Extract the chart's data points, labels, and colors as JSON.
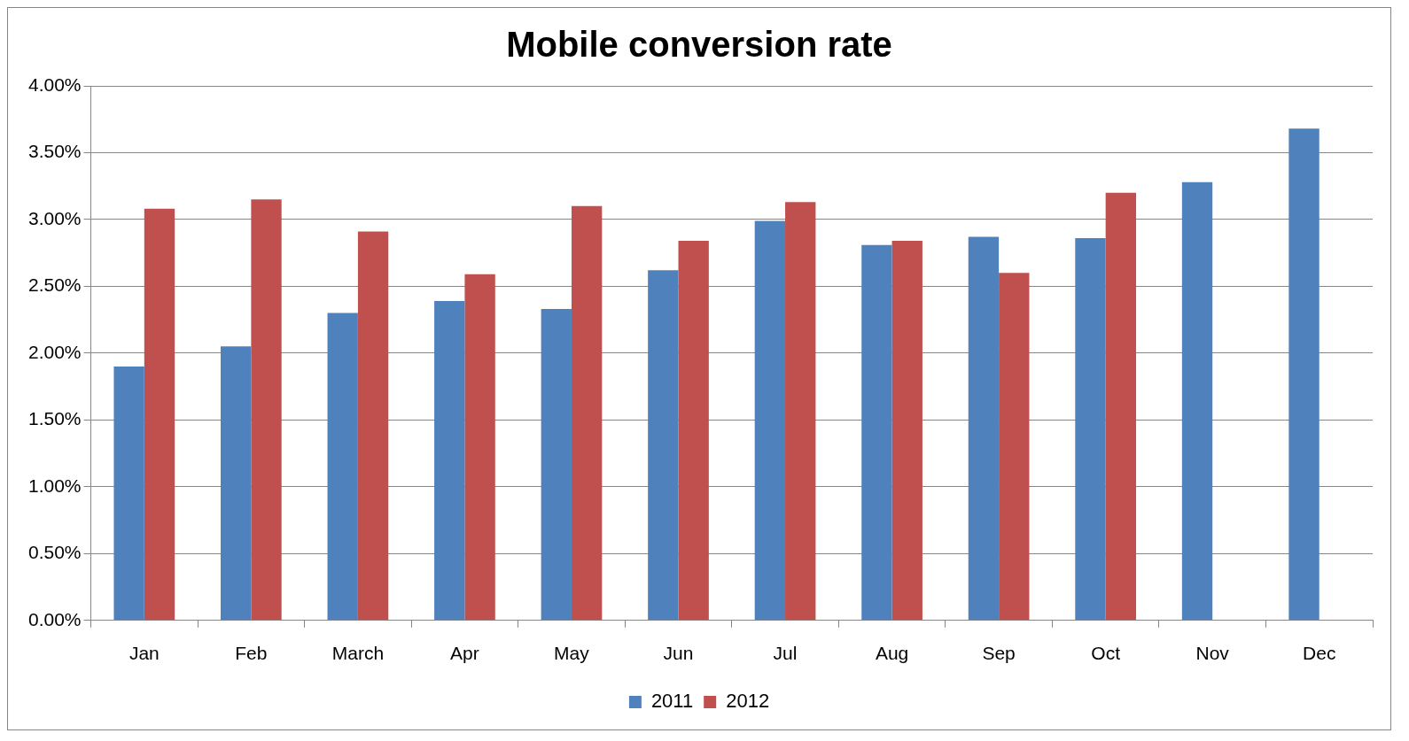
{
  "chart_data": {
    "type": "bar",
    "title": "Mobile conversion rate",
    "categories": [
      "Jan",
      "Feb",
      "March",
      "Apr",
      "May",
      "Jun",
      "Jul",
      "Aug",
      "Sep",
      "Oct",
      "Nov",
      "Dec"
    ],
    "series": [
      {
        "name": "2011",
        "color": "#4f81bd",
        "values": [
          1.9,
          2.05,
          2.3,
          2.39,
          2.33,
          2.62,
          2.99,
          2.81,
          2.87,
          2.86,
          3.28,
          3.68
        ]
      },
      {
        "name": "2012",
        "color": "#c0504d",
        "values": [
          3.08,
          3.15,
          2.91,
          2.59,
          3.1,
          2.84,
          3.13,
          2.84,
          2.6,
          3.2,
          null,
          null
        ]
      }
    ],
    "ylim": [
      0,
      4
    ],
    "yticks": [
      {
        "value": 0,
        "label": "0.00%"
      },
      {
        "value": 0.5,
        "label": "0.50%"
      },
      {
        "value": 1,
        "label": "1.00%"
      },
      {
        "value": 1.5,
        "label": "1.50%"
      },
      {
        "value": 2,
        "label": "2.00%"
      },
      {
        "value": 2.5,
        "label": "2.50%"
      },
      {
        "value": 3,
        "label": "3.00%"
      },
      {
        "value": 3.5,
        "label": "3.50%"
      },
      {
        "value": 4,
        "label": "4.00%"
      }
    ],
    "grid": "y",
    "legend": "bottom"
  }
}
